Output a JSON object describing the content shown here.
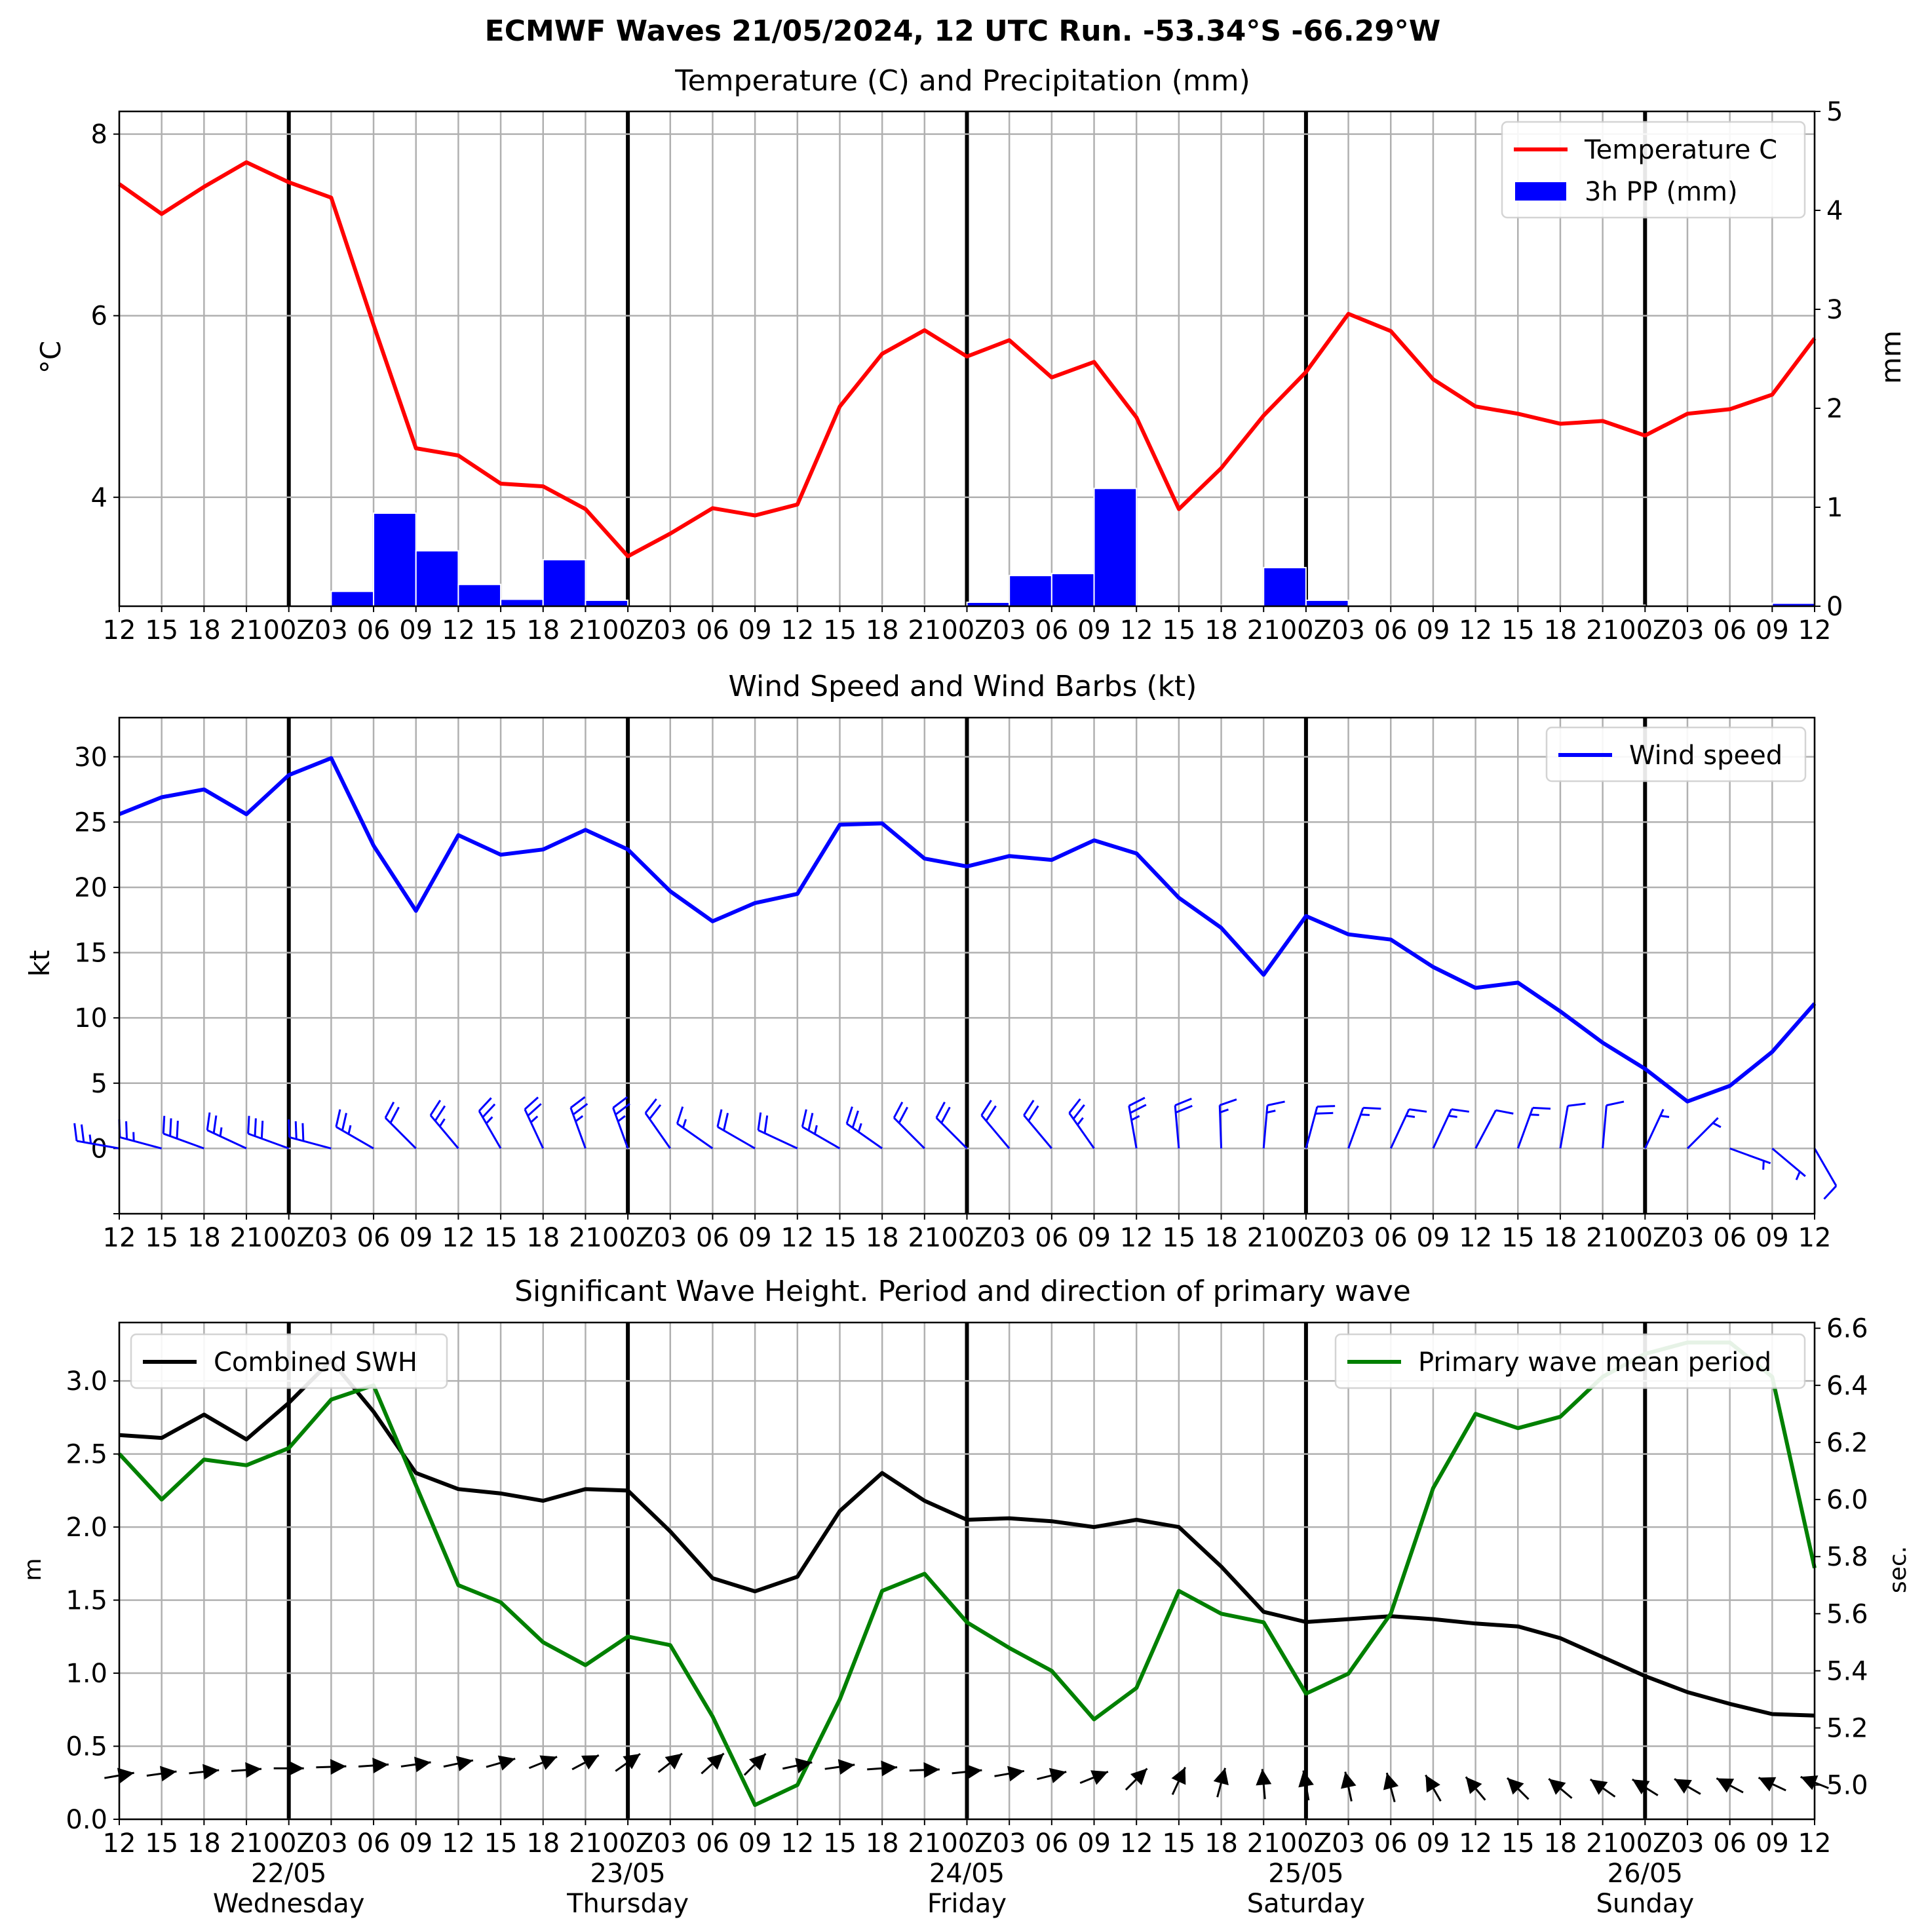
{
  "page_title": "ECMWF Waves 21/05/2024, 12 UTC Run. -53.34°S -66.29°W",
  "x_ticks": [
    "12",
    "15",
    "18",
    "21",
    "00Z",
    "03",
    "06",
    "09",
    "12",
    "15",
    "18",
    "21",
    "00Z",
    "03",
    "06",
    "09",
    "12",
    "15",
    "18",
    "21",
    "00Z",
    "03",
    "06",
    "09",
    "12",
    "15",
    "18",
    "21",
    "00Z",
    "03",
    "06",
    "09",
    "12",
    "15",
    "18",
    "21",
    "00Z",
    "03",
    "06",
    "09",
    "12"
  ],
  "day_labels": [
    {
      "date": "22/05",
      "weekday": "Wednesday"
    },
    {
      "date": "23/05",
      "weekday": "Thursday"
    },
    {
      "date": "24/05",
      "weekday": "Friday"
    },
    {
      "date": "25/05",
      "weekday": "Saturday"
    },
    {
      "date": "26/05",
      "weekday": "Sunday"
    }
  ],
  "colors": {
    "temperature": "#ff0000",
    "precip": "#0000ff",
    "wind": "#0000ff",
    "swh": "#000000",
    "period": "#008000",
    "wave_dir": "#000000",
    "grid": "#b0b0b0"
  },
  "chart_data": [
    {
      "type": "line",
      "title": "Temperature (C) and Precipitation (mm)",
      "ylabel": "°C",
      "y2label": "mm",
      "ylim": [
        2.8,
        8.25
      ],
      "yticks": [
        4,
        6,
        8
      ],
      "y2lim": [
        0,
        5
      ],
      "y2ticks": [
        0,
        1,
        2,
        3,
        4,
        5
      ],
      "legend_position": "top-right",
      "series": [
        {
          "name": "Temperature C",
          "type": "line",
          "axis": "left",
          "color": "#ff0000",
          "values": [
            7.45,
            7.12,
            7.42,
            7.69,
            7.47,
            7.3,
            5.9,
            4.54,
            4.46,
            4.15,
            4.12,
            3.87,
            3.35,
            3.6,
            3.88,
            3.8,
            3.92,
            5.0,
            5.58,
            5.84,
            5.55,
            5.73,
            5.32,
            5.49,
            4.88,
            3.87,
            4.32,
            4.9,
            5.38,
            6.02,
            5.83,
            5.3,
            5.0,
            4.92,
            4.81,
            4.84,
            4.68,
            4.92,
            4.97,
            5.13,
            5.75
          ]
        },
        {
          "name": "3h PP (mm)",
          "type": "bar",
          "axis": "right",
          "color": "#0000ff",
          "values": [
            0.01,
            0,
            0,
            0,
            0,
            0.15,
            0.94,
            0.56,
            0.22,
            0.07,
            0.47,
            0.06,
            0,
            0,
            0,
            0,
            0,
            0,
            0.01,
            0,
            0.04,
            0.31,
            0.33,
            1.19,
            0,
            0,
            0.01,
            0.39,
            0.06,
            0.01,
            0,
            0,
            0,
            0,
            0,
            0.01,
            0,
            0,
            0,
            0.03
          ]
        }
      ]
    },
    {
      "type": "line",
      "title": "Wind Speed and Wind Barbs (kt)",
      "ylabel": "kt",
      "ylim": [
        -5,
        33
      ],
      "yticks": [
        0,
        5,
        10,
        15,
        20,
        25,
        30
      ],
      "legend_position": "top-right",
      "series": [
        {
          "name": "Wind speed",
          "color": "#0000ff",
          "values": [
            25.6,
            26.9,
            27.5,
            25.6,
            28.6,
            29.9,
            23.2,
            18.2,
            24.0,
            22.5,
            22.9,
            24.4,
            22.9,
            19.7,
            17.4,
            18.8,
            19.5,
            24.8,
            24.9,
            22.2,
            21.6,
            22.4,
            22.1,
            23.6,
            22.6,
            19.2,
            16.9,
            13.3,
            17.8,
            16.4,
            16.0,
            13.9,
            12.3,
            12.7,
            10.5,
            8.1,
            6.1,
            3.6,
            4.8,
            7.4,
            11.1
          ]
        }
      ],
      "barbs_direction_deg": [
        280,
        285,
        290,
        295,
        290,
        285,
        300,
        315,
        320,
        330,
        335,
        340,
        340,
        325,
        305,
        300,
        295,
        300,
        305,
        315,
        315,
        320,
        320,
        325,
        350,
        355,
        358,
        5,
        15,
        20,
        25,
        25,
        28,
        20,
        10,
        5,
        25,
        45,
        110,
        130,
        150
      ]
    },
    {
      "type": "line",
      "title": "Significant Wave Height. Period and direction of primary wave",
      "ylabel": "m",
      "y2label": "sec.",
      "ylim": [
        0,
        3.4
      ],
      "yticks": [
        0.0,
        0.5,
        1.0,
        1.5,
        2.0,
        2.5,
        3.0
      ],
      "y2lim": [
        4.88,
        6.62
      ],
      "y2ticks": [
        5.0,
        5.2,
        5.4,
        5.6,
        5.8,
        6.0,
        6.2,
        6.4,
        6.6
      ],
      "legend_left_position": "top-left",
      "legend_right_position": "top-right",
      "series": [
        {
          "name": "Combined SWH",
          "axis": "left",
          "color": "#000000",
          "values": [
            2.63,
            2.61,
            2.77,
            2.6,
            2.85,
            3.14,
            2.79,
            2.37,
            2.26,
            2.23,
            2.18,
            2.26,
            2.25,
            1.97,
            1.65,
            1.56,
            1.66,
            2.11,
            2.37,
            2.18,
            2.05,
            2.06,
            2.04,
            2.0,
            2.05,
            2.0,
            1.73,
            1.42,
            1.35,
            1.37,
            1.39,
            1.37,
            1.34,
            1.32,
            1.24,
            1.11,
            0.98,
            0.87,
            0.79,
            0.72,
            0.71
          ]
        },
        {
          "name": "Primary wave mean period",
          "axis": "right",
          "color": "#008000",
          "values": [
            6.16,
            6.0,
            6.14,
            6.12,
            6.18,
            6.35,
            6.4,
            6.05,
            5.7,
            5.64,
            5.5,
            5.42,
            5.52,
            5.49,
            5.24,
            4.93,
            5.0,
            5.3,
            5.68,
            5.74,
            5.57,
            5.48,
            5.4,
            5.23,
            5.34,
            5.68,
            5.6,
            5.57,
            5.32,
            5.39,
            5.6,
            6.04,
            6.3,
            6.25,
            6.29,
            6.43,
            6.51,
            6.55,
            6.55,
            6.43,
            5.76
          ]
        }
      ],
      "wave_direction_deg": [
        260,
        262,
        264,
        266,
        270,
        268,
        266,
        262,
        258,
        254,
        248,
        242,
        235,
        232,
        228,
        225,
        258,
        262,
        266,
        268,
        264,
        260,
        256,
        248,
        225,
        205,
        195,
        175,
        170,
        168,
        165,
        150,
        140,
        135,
        130,
        125,
        122,
        120,
        118,
        115,
        112
      ]
    }
  ]
}
